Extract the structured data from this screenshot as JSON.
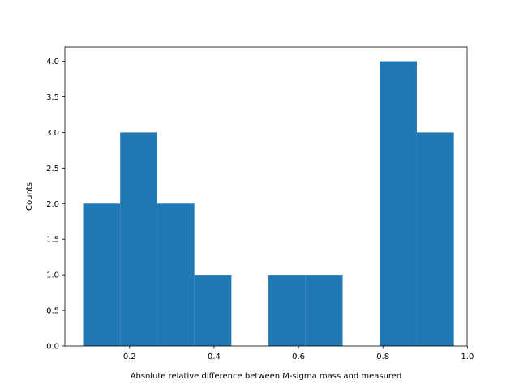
{
  "chart_data": {
    "type": "bar",
    "title": "",
    "xlabel": "Absolute relative difference between M-sigma mass and measured",
    "ylabel": "Counts",
    "xlim": [
      0.0467,
      0.9993
    ],
    "ylim": [
      0,
      4.2
    ],
    "grid": false,
    "legend": null,
    "bar_color": "#1f77b4",
    "bin_edges": [
      0.0899,
      0.1777,
      0.2655,
      0.3533,
      0.4411,
      0.5289,
      0.6167,
      0.7045,
      0.7923,
      0.8801,
      0.9679
    ],
    "counts": [
      2,
      3,
      2,
      1,
      0,
      1,
      1,
      0,
      4,
      3
    ],
    "x_ticks": [
      {
        "value": 0.2,
        "label": "0.2"
      },
      {
        "value": 0.4,
        "label": "0.4"
      },
      {
        "value": 0.6,
        "label": "0.6"
      },
      {
        "value": 0.8,
        "label": "0.8"
      },
      {
        "value": 1.0,
        "label": "1.0"
      }
    ],
    "y_ticks": [
      {
        "value": 0.0,
        "label": "0.0"
      },
      {
        "value": 0.5,
        "label": "0.5"
      },
      {
        "value": 1.0,
        "label": "1.0"
      },
      {
        "value": 1.5,
        "label": "1.5"
      },
      {
        "value": 2.0,
        "label": "2.0"
      },
      {
        "value": 2.5,
        "label": "2.5"
      },
      {
        "value": 3.0,
        "label": "3.0"
      },
      {
        "value": 3.5,
        "label": "3.5"
      },
      {
        "value": 4.0,
        "label": "4.0"
      }
    ]
  }
}
